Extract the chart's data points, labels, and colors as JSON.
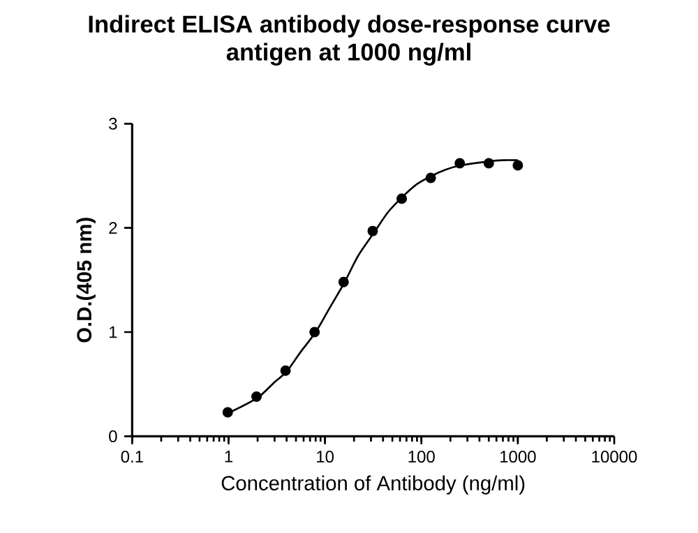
{
  "chart_data": {
    "type": "scatter",
    "title": "Indirect ELISA antibody dose-response curve",
    "subtitle": "antigen at 1000 ng/ml",
    "xlabel": "Concentration of Antibody (ng/ml)",
    "ylabel": "O.D.(405 nm)",
    "series": [
      {
        "color": "#000000",
        "marker": "circle",
        "x": [
          0.98,
          1.95,
          3.9,
          7.8,
          15.6,
          31.25,
          62.5,
          125,
          250,
          500,
          1000
        ],
        "values": [
          0.23,
          0.38,
          0.63,
          1.0,
          1.48,
          1.97,
          2.28,
          2.48,
          2.62,
          2.62,
          2.6
        ]
      },
      {
        "type": "line",
        "color": "#000000",
        "x": [
          0.98,
          2,
          3,
          4,
          5.5,
          8,
          11,
          16,
          22,
          32,
          45,
          64,
          90,
          128,
          180,
          256,
          512,
          700,
          1000
        ],
        "values": [
          0.22,
          0.37,
          0.52,
          0.62,
          0.8,
          1.0,
          1.22,
          1.48,
          1.73,
          1.95,
          2.15,
          2.3,
          2.42,
          2.5,
          2.56,
          2.6,
          2.64,
          2.65,
          2.65
        ]
      }
    ],
    "log": "x",
    "xlim": [
      0.1,
      10000
    ],
    "ylim": [
      0,
      3
    ],
    "xticks": [
      0.1,
      1,
      10,
      100,
      1000,
      10000
    ],
    "yticks": [
      0,
      1,
      2,
      3
    ],
    "grid": false
  }
}
